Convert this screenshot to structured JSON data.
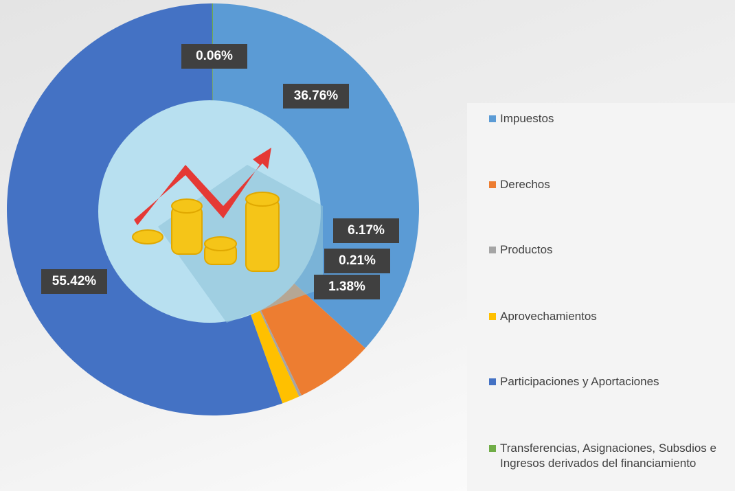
{
  "chart_data": {
    "type": "pie",
    "categories": [
      "Impuestos",
      "Derechos",
      "Productos",
      "Aprovechamientos",
      "Participaciones y Aportaciones",
      "Transferencias, Asignaciones, Subsdios e Ingresos derivados del financiamiento"
    ],
    "values": [
      36.76,
      6.17,
      0.21,
      1.38,
      55.42,
      0.06
    ],
    "value_labels": [
      "36.76%",
      "6.17%",
      "0.21%",
      "1.38%",
      "55.42%",
      "0.06%"
    ],
    "colors": [
      "#5b9bd5",
      "#ed7d31",
      "#a5a5a5",
      "#ffc000",
      "#4472c4",
      "#70ad47"
    ],
    "legend": "right"
  }
}
